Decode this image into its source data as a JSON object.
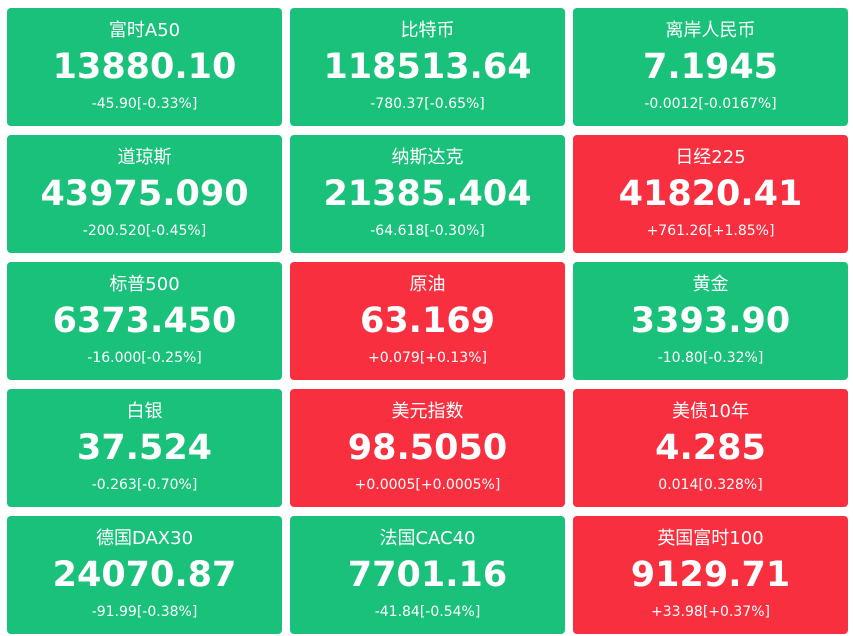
{
  "colors": {
    "up": "#f72f3f",
    "down": "#19c17a",
    "text": "#ffffff"
  },
  "tiles": [
    {
      "id": "ftse-a50",
      "name": "富时A50",
      "price": "13880.10",
      "change": "-45.90[-0.33%]",
      "direction": "down"
    },
    {
      "id": "bitcoin",
      "name": "比特币",
      "price": "118513.64",
      "change": "-780.37[-0.65%]",
      "direction": "down"
    },
    {
      "id": "offshore-cny",
      "name": "离岸人民币",
      "price": "7.1945",
      "change": "-0.0012[-0.0167%]",
      "direction": "down"
    },
    {
      "id": "dow-jones",
      "name": "道琼斯",
      "price": "43975.090",
      "change": "-200.520[-0.45%]",
      "direction": "down"
    },
    {
      "id": "nasdaq",
      "name": "纳斯达克",
      "price": "21385.404",
      "change": "-64.618[-0.30%]",
      "direction": "down"
    },
    {
      "id": "nikkei-225",
      "name": "日经225",
      "price": "41820.41",
      "change": "+761.26[+1.85%]",
      "direction": "up"
    },
    {
      "id": "sp-500",
      "name": "标普500",
      "price": "6373.450",
      "change": "-16.000[-0.25%]",
      "direction": "down"
    },
    {
      "id": "crude-oil",
      "name": "原油",
      "price": "63.169",
      "change": "+0.079[+0.13%]",
      "direction": "up"
    },
    {
      "id": "gold",
      "name": "黄金",
      "price": "3393.90",
      "change": "-10.80[-0.32%]",
      "direction": "down"
    },
    {
      "id": "silver",
      "name": "白银",
      "price": "37.524",
      "change": "-0.263[-0.70%]",
      "direction": "down"
    },
    {
      "id": "usd-index",
      "name": "美元指数",
      "price": "98.5050",
      "change": "+0.0005[+0.0005%]",
      "direction": "up"
    },
    {
      "id": "us-10y-treasury",
      "name": "美债10年",
      "price": "4.285",
      "change": "0.014[0.328%]",
      "direction": "up"
    },
    {
      "id": "dax-30",
      "name": "德国DAX30",
      "price": "24070.87",
      "change": "-91.99[-0.38%]",
      "direction": "down"
    },
    {
      "id": "cac-40",
      "name": "法国CAC40",
      "price": "7701.16",
      "change": "-41.84[-0.54%]",
      "direction": "down"
    },
    {
      "id": "ftse-100",
      "name": "英国富时100",
      "price": "9129.71",
      "change": "+33.98[+0.37%]",
      "direction": "up"
    }
  ]
}
